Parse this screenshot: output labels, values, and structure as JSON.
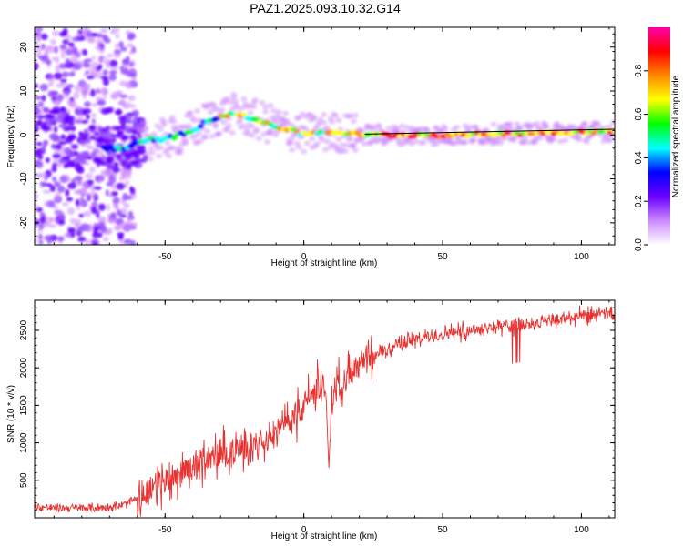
{
  "title": "PAZ1.2025.093.10.32.G14",
  "colors": {
    "snr_line": "#e8302f",
    "frequency_line": "#000000",
    "colormap": [
      "#ffffff",
      "#cc88ff",
      "#6a00ff",
      "#0000ff",
      "#00ffff",
      "#00ff00",
      "#ffff00",
      "#ff8800",
      "#ff0000",
      "#ff00aa"
    ]
  },
  "chart_data": [
    {
      "type": "heatmap",
      "xlabel": "Height of straight line (km)",
      "ylabel": "Frequency (Hz)",
      "xlim": [
        -97,
        112
      ],
      "ylim": [
        -25,
        24.5
      ],
      "xticks": [
        -50,
        0,
        50,
        100
      ],
      "xtick_labels": [
        "-50",
        "0",
        "50",
        "100"
      ],
      "yticks": [
        -20,
        -10,
        0,
        10,
        20
      ],
      "ytick_labels": [
        "-20",
        "-10",
        "0",
        "10",
        "20"
      ],
      "colorbar": {
        "label": "Normalized spectral amplitude",
        "range": [
          0,
          1
        ],
        "ticks": [
          "0.0",
          "0.2",
          "0.4",
          "0.6",
          "0.8"
        ]
      },
      "ridge": {
        "x": [
          -65,
          -60,
          -55,
          -50,
          -45,
          -40,
          -35,
          -30,
          -25,
          -20,
          -15,
          -10,
          -5,
          0,
          5,
          10,
          15,
          20,
          30,
          40,
          50,
          60,
          70,
          80,
          90,
          100,
          112
        ],
        "y": [
          -3,
          -2,
          -1,
          -1,
          0,
          1,
          3,
          4.5,
          4.8,
          4,
          3,
          2,
          1,
          0.3,
          0.5,
          0.7,
          0.5,
          0.1,
          0,
          0,
          0,
          0,
          0.3,
          0.4,
          0.6,
          0.7,
          0.8
        ]
      },
      "reference_line": {
        "x": [
          22,
          112
        ],
        "y": [
          0.2,
          1.3
        ]
      },
      "grid": false
    },
    {
      "type": "line",
      "xlabel": "Height of straight line (km)",
      "ylabel": "SNR (10 * v/v)",
      "xlim": [
        -97,
        112
      ],
      "ylim": [
        0,
        2900
      ],
      "xticks": [
        -50,
        0,
        50,
        100
      ],
      "xtick_labels": [
        "-50",
        "0",
        "50",
        "100"
      ],
      "yticks": [
        500,
        1000,
        1500,
        2000,
        2500
      ],
      "ytick_labels": [
        "500",
        "1000",
        "1500",
        "2000",
        "2500"
      ],
      "series": [
        {
          "x": [
            -97,
            -90,
            -80,
            -70,
            -65,
            -60,
            -55,
            -50,
            -45,
            -40,
            -35,
            -30,
            -25,
            -20,
            -15,
            -10,
            -5,
            0,
            3,
            5,
            7,
            8,
            9,
            10,
            12,
            15,
            20,
            25,
            30,
            35,
            40,
            45,
            50,
            55,
            60,
            65,
            70,
            75,
            80,
            85,
            90,
            95,
            100,
            105,
            112
          ],
          "y": [
            150,
            130,
            130,
            140,
            170,
            260,
            380,
            480,
            600,
            700,
            760,
            840,
            880,
            960,
            1060,
            1150,
            1300,
            1500,
            1650,
            1700,
            1750,
            1650,
            650,
            1600,
            1750,
            1850,
            2000,
            2150,
            2250,
            2330,
            2380,
            2420,
            2450,
            2480,
            2510,
            2530,
            2550,
            2560,
            2590,
            2610,
            2630,
            2660,
            2680,
            2700,
            2720
          ]
        }
      ],
      "grid": false
    }
  ]
}
